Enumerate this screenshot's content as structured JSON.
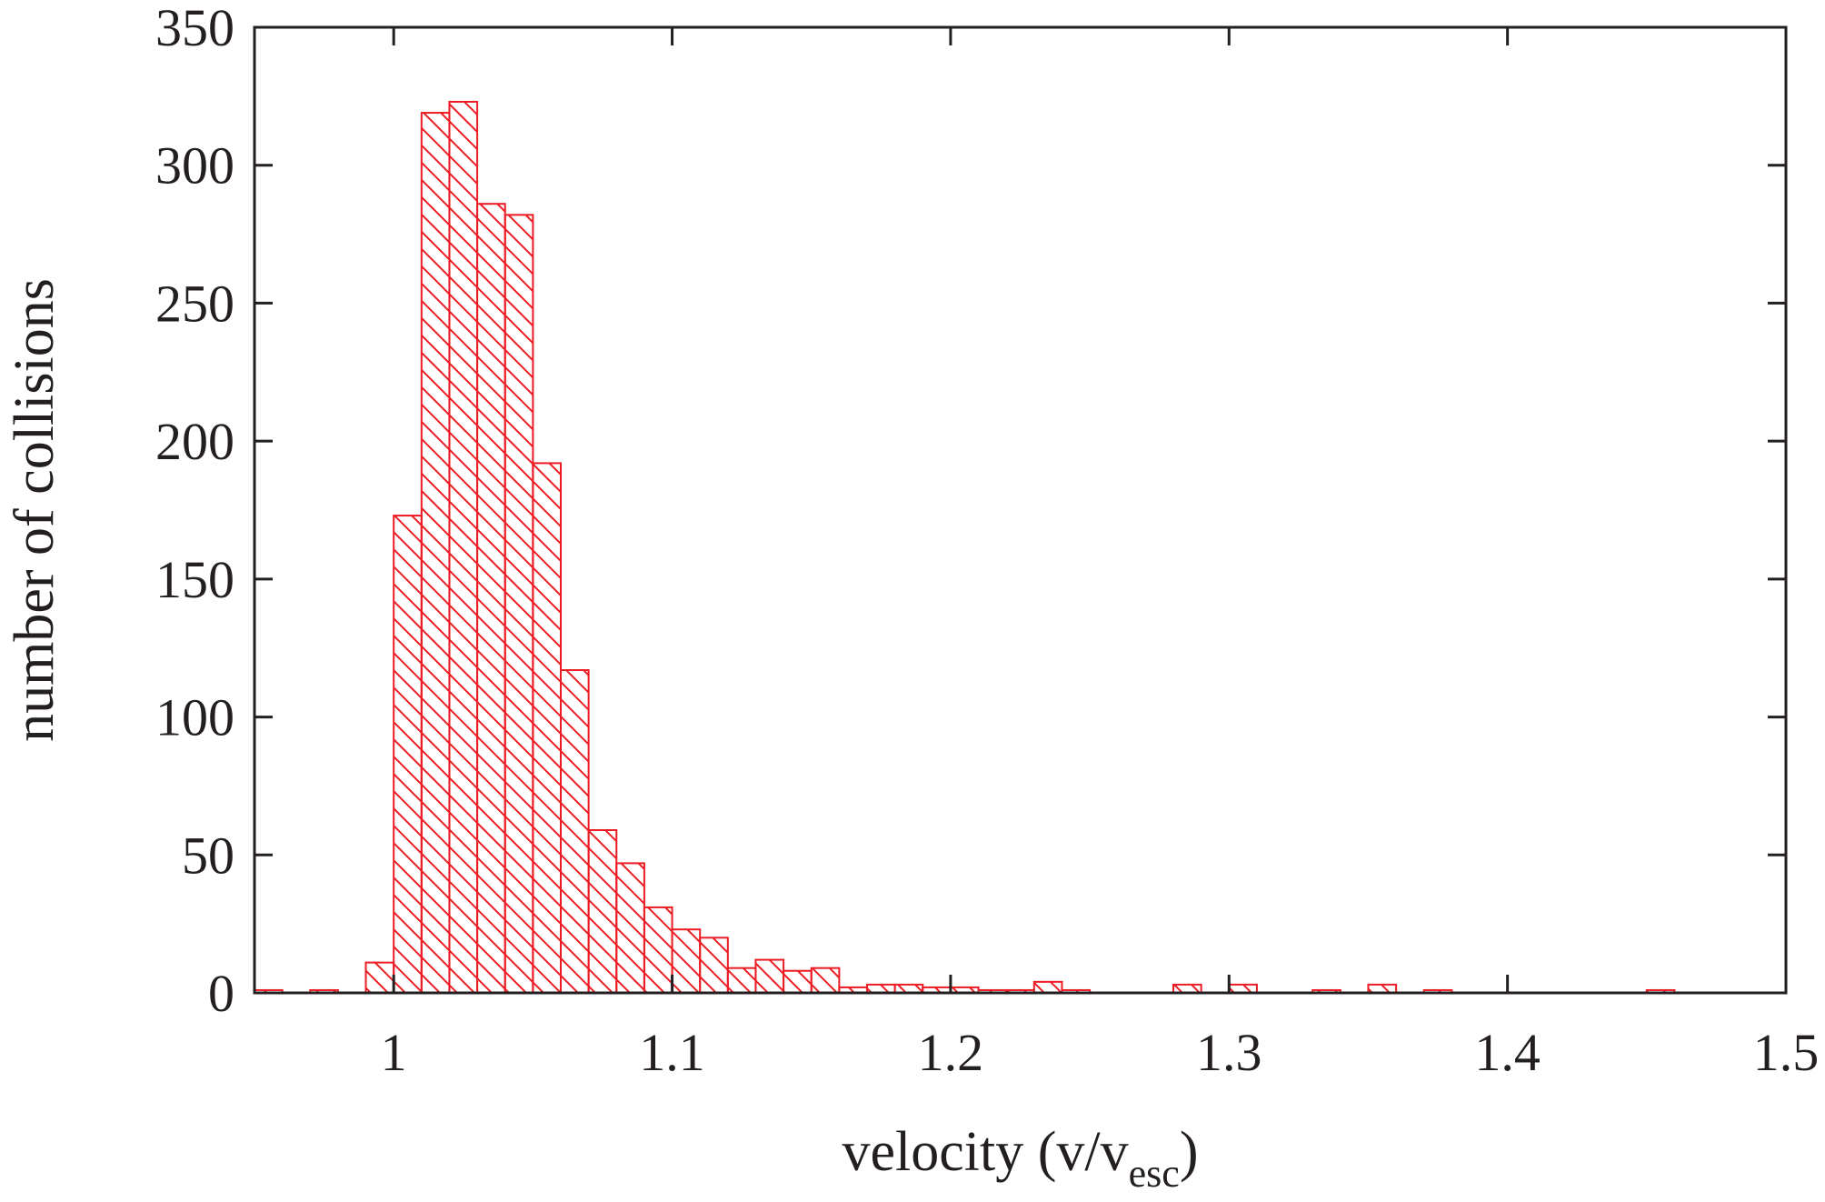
{
  "chart_data": {
    "type": "bar",
    "subtype": "histogram",
    "xlabel": "velocity (v/v",
    "xlabel_subscript": "esc",
    "xlabel_suffix": ")",
    "ylabel": "number of collisions",
    "xlim": [
      0.95,
      1.5
    ],
    "ylim": [
      0,
      350
    ],
    "xticks": [
      1,
      1.1,
      1.2,
      1.3,
      1.4,
      1.5
    ],
    "xtick_labels": [
      "1",
      "1.1",
      "1.2",
      "1.3",
      "1.4",
      "1.5"
    ],
    "yticks": [
      0,
      50,
      100,
      150,
      200,
      250,
      300,
      350
    ],
    "ytick_labels": [
      "0",
      "50",
      "100",
      "150",
      "200",
      "250",
      "300",
      "350"
    ],
    "bin_width": 0.01,
    "grid": false,
    "bar_color": "#ed1c24",
    "fill_pattern": "diagonal-hatch",
    "bins": [
      {
        "x0": 0.95,
        "x1": 0.96,
        "value": 1
      },
      {
        "x0": 0.97,
        "x1": 0.98,
        "value": 1
      },
      {
        "x0": 0.99,
        "x1": 1.0,
        "value": 11
      },
      {
        "x0": 1.0,
        "x1": 1.01,
        "value": 173
      },
      {
        "x0": 1.01,
        "x1": 1.02,
        "value": 319
      },
      {
        "x0": 1.02,
        "x1": 1.03,
        "value": 323
      },
      {
        "x0": 1.03,
        "x1": 1.04,
        "value": 286
      },
      {
        "x0": 1.04,
        "x1": 1.05,
        "value": 282
      },
      {
        "x0": 1.05,
        "x1": 1.06,
        "value": 192
      },
      {
        "x0": 1.06,
        "x1": 1.07,
        "value": 117
      },
      {
        "x0": 1.07,
        "x1": 1.08,
        "value": 59
      },
      {
        "x0": 1.08,
        "x1": 1.09,
        "value": 47
      },
      {
        "x0": 1.09,
        "x1": 1.1,
        "value": 31
      },
      {
        "x0": 1.1,
        "x1": 1.11,
        "value": 23
      },
      {
        "x0": 1.11,
        "x1": 1.12,
        "value": 20
      },
      {
        "x0": 1.12,
        "x1": 1.13,
        "value": 9
      },
      {
        "x0": 1.13,
        "x1": 1.14,
        "value": 12
      },
      {
        "x0": 1.14,
        "x1": 1.15,
        "value": 8
      },
      {
        "x0": 1.15,
        "x1": 1.16,
        "value": 9
      },
      {
        "x0": 1.16,
        "x1": 1.17,
        "value": 2
      },
      {
        "x0": 1.17,
        "x1": 1.18,
        "value": 3
      },
      {
        "x0": 1.18,
        "x1": 1.19,
        "value": 3
      },
      {
        "x0": 1.19,
        "x1": 1.2,
        "value": 2
      },
      {
        "x0": 1.2,
        "x1": 1.21,
        "value": 2
      },
      {
        "x0": 1.21,
        "x1": 1.22,
        "value": 1
      },
      {
        "x0": 1.22,
        "x1": 1.23,
        "value": 1
      },
      {
        "x0": 1.23,
        "x1": 1.24,
        "value": 4
      },
      {
        "x0": 1.24,
        "x1": 1.25,
        "value": 1
      },
      {
        "x0": 1.28,
        "x1": 1.29,
        "value": 3
      },
      {
        "x0": 1.3,
        "x1": 1.31,
        "value": 3
      },
      {
        "x0": 1.33,
        "x1": 1.34,
        "value": 1
      },
      {
        "x0": 1.35,
        "x1": 1.36,
        "value": 3
      },
      {
        "x0": 1.37,
        "x1": 1.38,
        "value": 1
      },
      {
        "x0": 1.45,
        "x1": 1.46,
        "value": 1
      }
    ]
  }
}
